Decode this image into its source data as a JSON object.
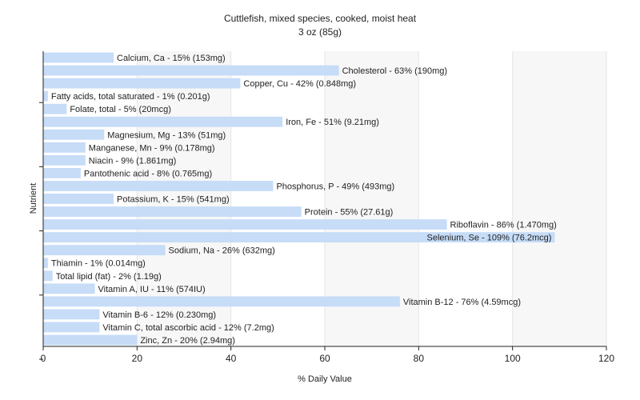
{
  "chart_data": {
    "type": "bar",
    "orientation": "horizontal",
    "title": "Cuttlefish, mixed species, cooked, moist heat",
    "subtitle": "3 oz (85g)",
    "xlabel": "% Daily Value",
    "ylabel": "Nutrient",
    "xlim": [
      0,
      120
    ],
    "xticks": [
      0,
      20,
      40,
      60,
      80,
      100,
      120
    ],
    "grid": true,
    "bar_color": "#c6dcf7",
    "categories": [
      "Calcium, Ca",
      "Cholesterol",
      "Copper, Cu",
      "Fatty acids, total saturated",
      "Folate, total",
      "Iron, Fe",
      "Magnesium, Mg",
      "Manganese, Mn",
      "Niacin",
      "Pantothenic acid",
      "Phosphorus, P",
      "Potassium, K",
      "Protein",
      "Riboflavin",
      "Selenium, Se",
      "Sodium, Na",
      "Thiamin",
      "Total lipid (fat)",
      "Vitamin A, IU",
      "Vitamin B-12",
      "Vitamin B-6",
      "Vitamin C, total ascorbic acid",
      "Zinc, Zn"
    ],
    "values": [
      15,
      63,
      42,
      1,
      5,
      51,
      13,
      9,
      9,
      8,
      49,
      15,
      55,
      86,
      109,
      26,
      1,
      2,
      11,
      76,
      12,
      12,
      20
    ],
    "labels": [
      "Calcium, Ca - 15% (153mg)",
      "Cholesterol - 63% (190mg)",
      "Copper, Cu - 42% (0.848mg)",
      "Fatty acids, total saturated - 1% (0.201g)",
      "Folate, total - 5% (20mcg)",
      "Iron, Fe - 51% (9.21mg)",
      "Magnesium, Mg - 13% (51mg)",
      "Manganese, Mn - 9% (0.178mg)",
      "Niacin - 9% (1.861mg)",
      "Pantothenic acid - 8% (0.765mg)",
      "Phosphorus, P - 49% (493mg)",
      "Potassium, K - 15% (541mg)",
      "Protein - 55% (27.61g)",
      "Riboflavin - 86% (1.470mg)",
      "Selenium, Se - 109% (76.2mcg)",
      "Sodium, Na - 26% (632mg)",
      "Thiamin - 1% (0.014mg)",
      "Total lipid (fat) - 2% (1.19g)",
      "Vitamin A, IU - 11% (574IU)",
      "Vitamin B-12 - 76% (4.59mcg)",
      "Vitamin B-6 - 12% (0.230mg)",
      "Vitamin C, total ascorbic acid - 12% (7.2mg)",
      "Zinc, Zn - 20% (2.94mg)"
    ]
  }
}
